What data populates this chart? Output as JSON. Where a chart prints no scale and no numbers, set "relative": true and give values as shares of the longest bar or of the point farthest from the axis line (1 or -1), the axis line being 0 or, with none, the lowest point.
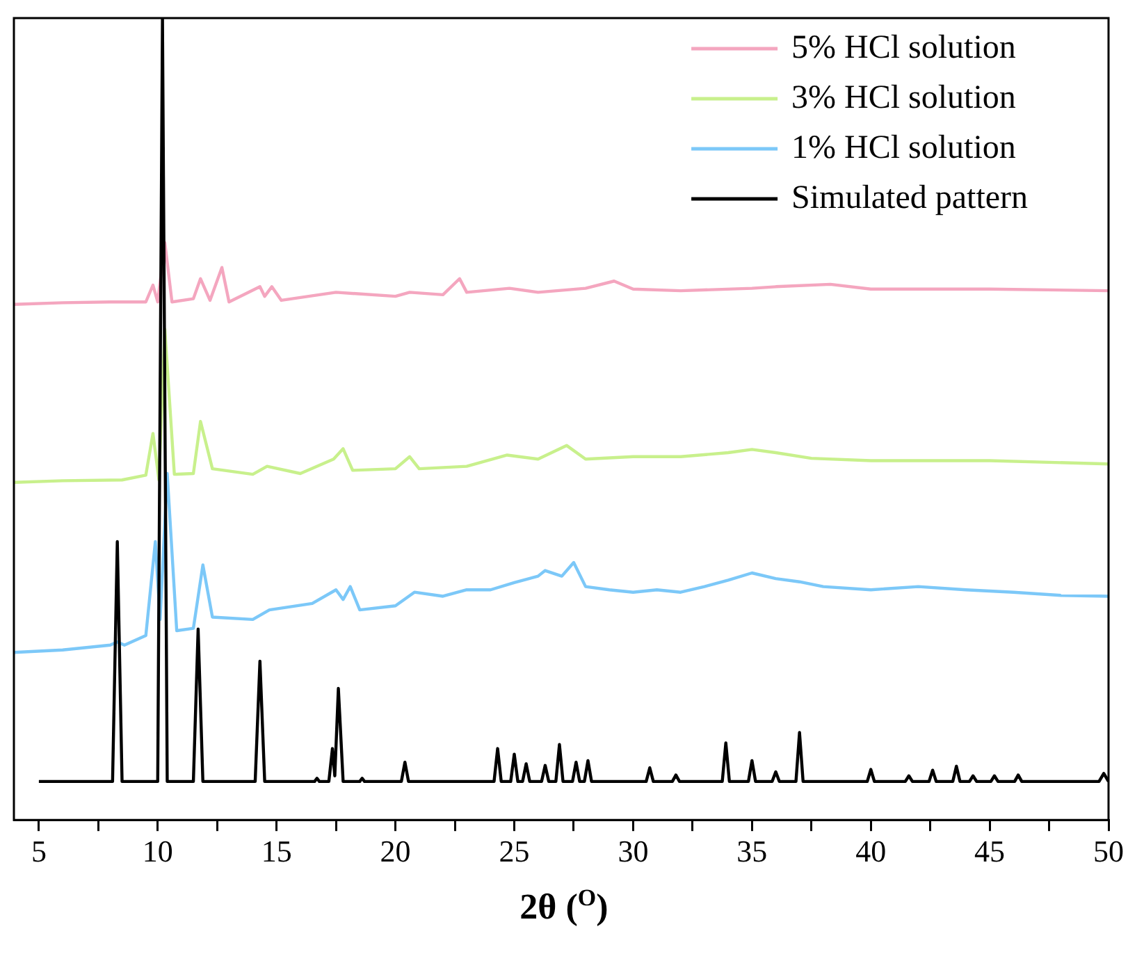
{
  "chart_data": {
    "type": "line",
    "xlabel": "2θ ($^{O}$)",
    "relative": true,
    "legend": "top right",
    "tick_labels": "x",
    "marker": "none",
    "line_style": "solid",
    "xlim": [
      3.95,
      50
    ],
    "xticks": [
      5,
      {
        "value": 7.5,
        "label": null
      },
      10,
      {
        "value": 12.5,
        "label": null
      },
      15,
      {
        "value": 17.5,
        "label": null
      },
      20,
      {
        "value": 22.5,
        "label": null
      },
      25,
      {
        "value": 27.5,
        "label": null
      },
      30,
      {
        "value": 32.5,
        "label": null
      },
      35,
      {
        "value": 37.5,
        "label": null
      },
      40,
      {
        "value": 42.5,
        "label": null
      },
      45,
      {
        "value": 47.5,
        "label": null
      },
      50
    ],
    "series": [
      {
        "name": "5% HCl solution",
        "color": "#f4a6bf",
        "x": [
          3.95,
          6,
          8,
          9.5,
          9.8,
          10.0,
          10.3,
          10.6,
          11.5,
          11.8,
          12.2,
          12.7,
          13,
          14.3,
          14.5,
          14.8,
          15.2,
          17.5,
          20,
          20.6,
          22,
          22.7,
          23,
          24.8,
          26,
          28,
          29.2,
          30,
          32,
          35,
          36,
          38.3,
          40,
          45,
          50
        ],
        "values": [
          0.643,
          0.645,
          0.646,
          0.646,
          0.667,
          0.646,
          0.72,
          0.646,
          0.65,
          0.675,
          0.648,
          0.689,
          0.646,
          0.665,
          0.653,
          0.665,
          0.648,
          0.658,
          0.653,
          0.658,
          0.655,
          0.675,
          0.658,
          0.663,
          0.658,
          0.663,
          0.672,
          0.662,
          0.66,
          0.663,
          0.665,
          0.668,
          0.662,
          0.662,
          0.66
        ]
      },
      {
        "name": "3% HCl solution",
        "color": "#c8f08c",
        "x": [
          3.95,
          6,
          8.5,
          9.5,
          9.8,
          10.05,
          10.3,
          10.7,
          11.5,
          11.8,
          12.3,
          14,
          14.6,
          16,
          17.4,
          17.8,
          18.2,
          20,
          20.6,
          21,
          23,
          24.7,
          26,
          27.2,
          28,
          30,
          32,
          34,
          35,
          36,
          37.5,
          40,
          45,
          50
        ],
        "values": [
          0.421,
          0.423,
          0.424,
          0.43,
          0.482,
          0.424,
          0.612,
          0.431,
          0.432,
          0.497,
          0.438,
          0.431,
          0.441,
          0.432,
          0.45,
          0.463,
          0.436,
          0.438,
          0.453,
          0.438,
          0.441,
          0.455,
          0.45,
          0.467,
          0.45,
          0.453,
          0.453,
          0.458,
          0.462,
          0.458,
          0.451,
          0.448,
          0.448,
          0.444
        ]
      },
      {
        "name": "1% HCl solution",
        "color": "#7cc8f8",
        "x": [
          3.95,
          6,
          8,
          8.3,
          8.6,
          9.5,
          9.9,
          10.1,
          10.4,
          10.8,
          11.5,
          11.9,
          12.3,
          14,
          14.7,
          16.5,
          17.5,
          17.8,
          18.1,
          18.5,
          20,
          20.8,
          22,
          23,
          24,
          25,
          26,
          26.3,
          27,
          27.5,
          28,
          29,
          30,
          31,
          32,
          33,
          34,
          35,
          36,
          37,
          38,
          40,
          42,
          44,
          46,
          48,
          50
        ],
        "values": [
          0.209,
          0.212,
          0.218,
          0.222,
          0.218,
          0.23,
          0.347,
          0.25,
          0.432,
          0.236,
          0.239,
          0.318,
          0.253,
          0.25,
          0.262,
          0.27,
          0.287,
          0.275,
          0.291,
          0.262,
          0.267,
          0.284,
          0.279,
          0.287,
          0.287,
          0.296,
          0.304,
          0.311,
          0.304,
          0.321,
          0.291,
          0.287,
          0.284,
          0.287,
          0.284,
          0.291,
          0.299,
          0.308,
          0.301,
          0.297,
          0.291,
          0.287,
          0.291,
          0.287,
          0.284,
          0.28,
          0.279
        ]
      },
      {
        "name": "Simulated pattern",
        "color": "#000000",
        "x": [
          5,
          8.1,
          8.3,
          8.5,
          10.0,
          10.2,
          10.4,
          11.5,
          11.7,
          11.9,
          14.1,
          14.3,
          14.5,
          16.6,
          16.7,
          16.8,
          17.2,
          17.35,
          17.45,
          17.6,
          17.8,
          18.5,
          18.6,
          18.7,
          20.25,
          20.4,
          20.55,
          24.15,
          24.3,
          24.45,
          24.85,
          25.0,
          25.15,
          25.35,
          25.5,
          25.65,
          26.15,
          26.3,
          26.45,
          26.75,
          26.9,
          27.05,
          27.45,
          27.6,
          27.75,
          27.95,
          28.1,
          28.25,
          30.55,
          30.7,
          30.85,
          31.65,
          31.8,
          31.95,
          33.75,
          33.9,
          34.05,
          34.85,
          35.0,
          35.15,
          35.85,
          36.0,
          36.15,
          36.85,
          37.0,
          37.15,
          39.85,
          40.0,
          40.15,
          41.45,
          41.6,
          41.75,
          42.45,
          42.6,
          42.75,
          43.45,
          43.6,
          43.75,
          44.15,
          44.3,
          44.45,
          45.05,
          45.2,
          45.35,
          46.05,
          46.2,
          46.35,
          49.6,
          49.8,
          50
        ],
        "values": [
          0.048,
          0.048,
          0.347,
          0.048,
          0.048,
          1.0,
          0.048,
          0.048,
          0.238,
          0.048,
          0.048,
          0.198,
          0.048,
          0.048,
          0.052,
          0.048,
          0.048,
          0.089,
          0.055,
          0.164,
          0.048,
          0.048,
          0.052,
          0.048,
          0.048,
          0.072,
          0.048,
          0.048,
          0.089,
          0.048,
          0.048,
          0.082,
          0.048,
          0.048,
          0.07,
          0.048,
          0.048,
          0.068,
          0.048,
          0.048,
          0.094,
          0.048,
          0.048,
          0.072,
          0.048,
          0.048,
          0.074,
          0.048,
          0.048,
          0.065,
          0.048,
          0.048,
          0.056,
          0.048,
          0.048,
          0.096,
          0.048,
          0.048,
          0.074,
          0.048,
          0.048,
          0.06,
          0.048,
          0.048,
          0.109,
          0.048,
          0.048,
          0.063,
          0.048,
          0.048,
          0.055,
          0.048,
          0.048,
          0.062,
          0.048,
          0.048,
          0.067,
          0.048,
          0.048,
          0.055,
          0.048,
          0.048,
          0.055,
          0.048,
          0.048,
          0.056,
          0.048,
          0.048,
          0.058,
          0.048
        ]
      }
    ]
  }
}
